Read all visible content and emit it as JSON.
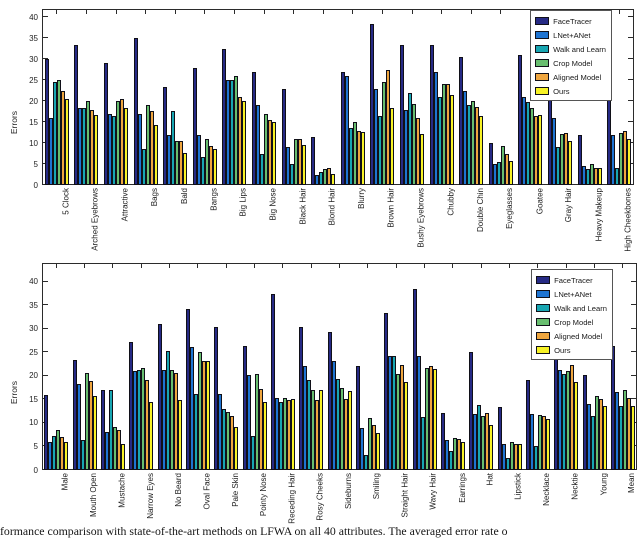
{
  "figure": {
    "caption": "formance comparison with state-of-the-art methods on LFWA on all 40 attributes.  The averaged error rate o"
  },
  "chart_data": [
    {
      "type": "bar",
      "title": "",
      "ylabel": "Errors",
      "ylim": [
        0,
        42
      ],
      "yticks": [
        0,
        5,
        10,
        15,
        20,
        25,
        30,
        35,
        40
      ],
      "grid": false,
      "legend_position": "top-right",
      "categories": [
        "5 Clock",
        "Arched Eyebrows",
        "Attractive",
        "Bags",
        "Bald",
        "Bangs",
        "Big Lips",
        "Big Nose",
        "Black Hair",
        "Blond Hair",
        "Blurry",
        "Brown Hair",
        "Bushy Eyebrows",
        "Chubby",
        "Double Chin",
        "Eyeglasses",
        "Goatee",
        "Gray Hair",
        "Heavy Makeup",
        "High Cheekbones"
      ],
      "series": [
        {
          "name": "FaceTracer",
          "color": "#262a85",
          "values": [
            30,
            33.5,
            29,
            35,
            23.5,
            28,
            32.5,
            27,
            23,
            11.5,
            27,
            38.5,
            33.5,
            33.5,
            30.5,
            10,
            31,
            22,
            12,
            23.5
          ]
        },
        {
          "name": "LNet+ANet",
          "color": "#1e74d2",
          "values": [
            16,
            18.3,
            17,
            17,
            12,
            12,
            25,
            19,
            9,
            2.5,
            26,
            23,
            17.8,
            27,
            22.5,
            5,
            21,
            16,
            4.5,
            12
          ]
        },
        {
          "name": "Walk and Learn",
          "color": "#18a6b2",
          "values": [
            24.5,
            18.3,
            16.5,
            8.5,
            17.6,
            6.7,
            25,
            7.3,
            5,
            3.2,
            13.6,
            16.4,
            22,
            21,
            19,
            5.5,
            19.8,
            9,
            3.7,
            4
          ]
        },
        {
          "name": "Crop Model",
          "color": "#68be6f",
          "values": [
            25,
            20,
            20,
            19.2,
            10.6,
            11,
            26,
            17,
            11,
            3.7,
            15,
            24.6,
            19.4,
            24,
            20,
            9.3,
            18.4,
            12.2,
            5,
            12.5
          ]
        },
        {
          "name": "Aligned Model",
          "color": "#efa63f",
          "values": [
            22.5,
            18,
            20.5,
            17.6,
            10.6,
            9.3,
            21,
            15.6,
            11,
            4.1,
            13,
            27.5,
            16,
            24,
            18.6,
            7.5,
            16.4,
            12.5,
            4,
            12.8
          ]
        },
        {
          "name": "Ours",
          "color": "#f7f226",
          "values": [
            20.5,
            16.7,
            18.3,
            14.3,
            7.7,
            8.5,
            20,
            15,
            9.5,
            2.7,
            12.6,
            18.4,
            12.2,
            21.5,
            16.5,
            5.7,
            16.8,
            10.5,
            4,
            11
          ]
        }
      ]
    },
    {
      "type": "bar",
      "title": "",
      "ylabel": "Errors",
      "ylim": [
        0,
        44
      ],
      "yticks": [
        0,
        5,
        10,
        15,
        20,
        25,
        30,
        35,
        40
      ],
      "grid": false,
      "legend_position": "top-right",
      "categories": [
        "Male",
        "Mouth Open",
        "Mustache",
        "Narrow Eyes",
        "No Beard",
        "Oval Face",
        "Pale Skin",
        "Pointy Nose",
        "Receding Hair",
        "Rosy Cheeks",
        "Sideburns",
        "Smiling",
        "Straight Hair",
        "Wavy Hair",
        "Earrings",
        "Hat",
        "Lipstick",
        "Necklace",
        "Necktie",
        "Young",
        "Mean"
      ],
      "series": [
        {
          "name": "FaceTracer",
          "color": "#262a85",
          "values": [
            16,
            23.3,
            17,
            27.2,
            31,
            34.2,
            30.3,
            26.3,
            37.4,
            30.5,
            29.4,
            22.2,
            33.3,
            38.4,
            12.1,
            25.1,
            13.3,
            19.2,
            29,
            20.2,
            26.4
          ]
        },
        {
          "name": "LNet+ANet",
          "color": "#1e74d2",
          "values": [
            6,
            18.2,
            8.1,
            21,
            21.3,
            26.1,
            16.2,
            20.2,
            15.3,
            22.2,
            23.2,
            9,
            24.2,
            24.2,
            6.3,
            11.9,
            5.6,
            11.9,
            21.3,
            14,
            16.5
          ]
        },
        {
          "name": "Walk and Learn",
          "color": "#18a6b2",
          "values": [
            7.3,
            6.4,
            17.1,
            21.3,
            25.4,
            16.2,
            13,
            7.3,
            14.4,
            19.2,
            19.4,
            3.1,
            24.2,
            11.2,
            4,
            13.9,
            2.5,
            5.2,
            20.4,
            11.4,
            13.6
          ]
        },
        {
          "name": "Crop Model",
          "color": "#68be6f",
          "values": [
            8.6,
            20.6,
            9.2,
            21.6,
            21.3,
            25.1,
            12.4,
            20.4,
            15.3,
            17,
            17.4,
            11,
            20.3,
            21.6,
            6.8,
            11.5,
            5.9,
            11.7,
            21,
            15.8,
            16.9
          ]
        },
        {
          "name": "Aligned Model",
          "color": "#efa63f",
          "values": [
            7.1,
            18.9,
            8.5,
            19.1,
            20.7,
            23.2,
            11.4,
            17.2,
            14.8,
            14.9,
            15.1,
            9.5,
            22.4,
            22.1,
            6.6,
            12.2,
            5.5,
            11.4,
            22.3,
            15,
            15.2
          ]
        },
        {
          "name": "Ours",
          "color": "#f7f226",
          "values": [
            6,
            15.7,
            5.6,
            14.5,
            14.8,
            23.1,
            9.1,
            14.4,
            15,
            17,
            16.7,
            7.9,
            18.8,
            21.5,
            5.9,
            9.5,
            5.6,
            10.9,
            18.8,
            13.7,
            13.5
          ]
        }
      ]
    }
  ]
}
